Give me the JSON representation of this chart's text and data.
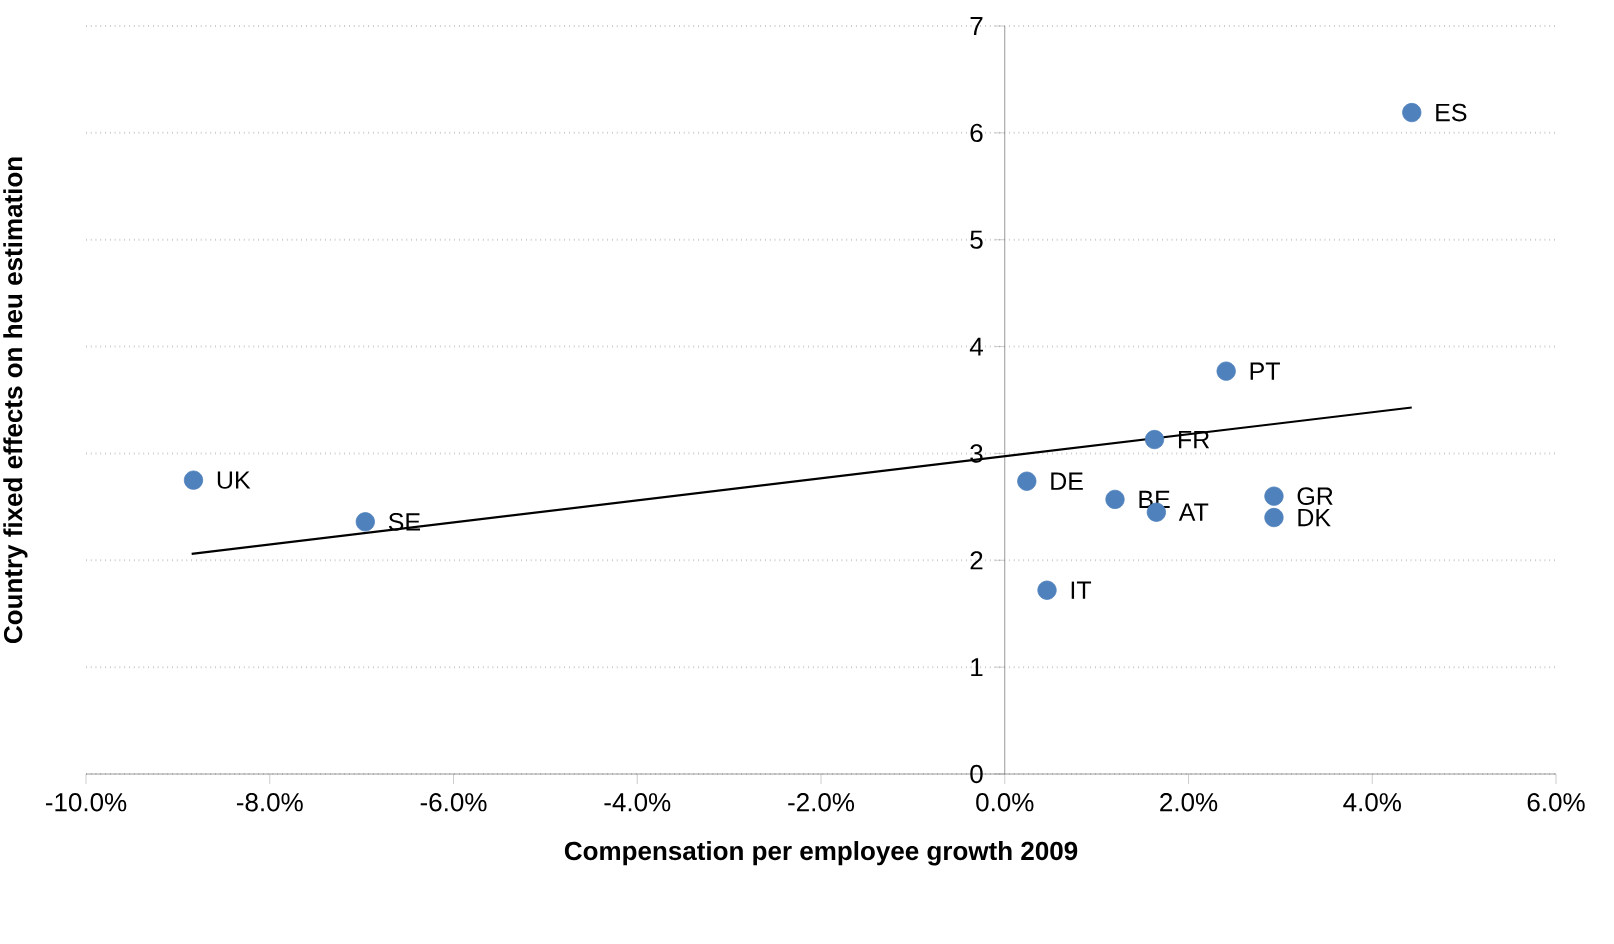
{
  "chart_data": {
    "type": "scatter",
    "xlabel": "Compensation per employee growth 2009",
    "ylabel": "Country fixed effects on heu estimation",
    "xlim": [
      -10,
      6
    ],
    "xticks": [
      {
        "value": -10,
        "label": "-10.0%"
      },
      {
        "value": -8,
        "label": "-8.0%"
      },
      {
        "value": -6,
        "label": "-6.0%"
      },
      {
        "value": -4,
        "label": "-4.0%"
      },
      {
        "value": -2,
        "label": "-2.0%"
      },
      {
        "value": 0,
        "label": "0.0%"
      },
      {
        "value": 2,
        "label": "2.0%"
      },
      {
        "value": 4,
        "label": "4.0%"
      },
      {
        "value": 6,
        "label": "6.0%"
      }
    ],
    "ylim": [
      0,
      7
    ],
    "yticks": [
      0,
      1,
      2,
      3,
      4,
      5,
      6,
      7
    ],
    "grid": "y",
    "series": [
      {
        "marker": "circle",
        "color": "#4f81bd",
        "x": [
          -8.83,
          -6.96,
          4.43,
          2.41,
          1.63,
          0.24,
          1.2,
          1.65,
          2.93,
          2.93,
          0.46
        ],
        "values": [
          2.75,
          2.36,
          6.19,
          3.77,
          3.13,
          2.74,
          2.57,
          2.45,
          2.6,
          2.4,
          1.72
        ]
      },
      {
        "type": "line",
        "color": "#000000",
        "x": [
          -8.85,
          4.43
        ],
        "values": [
          2.06,
          3.43
        ]
      }
    ],
    "annotations": [
      {
        "text": "UK",
        "x": -8.83,
        "y": 2.75
      },
      {
        "text": "SE",
        "x": -6.96,
        "y": 2.36
      },
      {
        "text": "ES",
        "x": 4.43,
        "y": 6.19
      },
      {
        "text": "PT",
        "x": 2.41,
        "y": 3.77
      },
      {
        "text": "FR",
        "x": 1.63,
        "y": 3.13
      },
      {
        "text": "DE",
        "x": 0.24,
        "y": 2.74
      },
      {
        "text": "BE",
        "x": 1.2,
        "y": 2.57
      },
      {
        "text": "AT",
        "x": 1.65,
        "y": 2.45
      },
      {
        "text": "GR",
        "x": 2.93,
        "y": 2.6
      },
      {
        "text": "DK",
        "x": 2.93,
        "y": 2.4
      },
      {
        "text": "IT",
        "x": 0.46,
        "y": 1.72
      }
    ]
  }
}
